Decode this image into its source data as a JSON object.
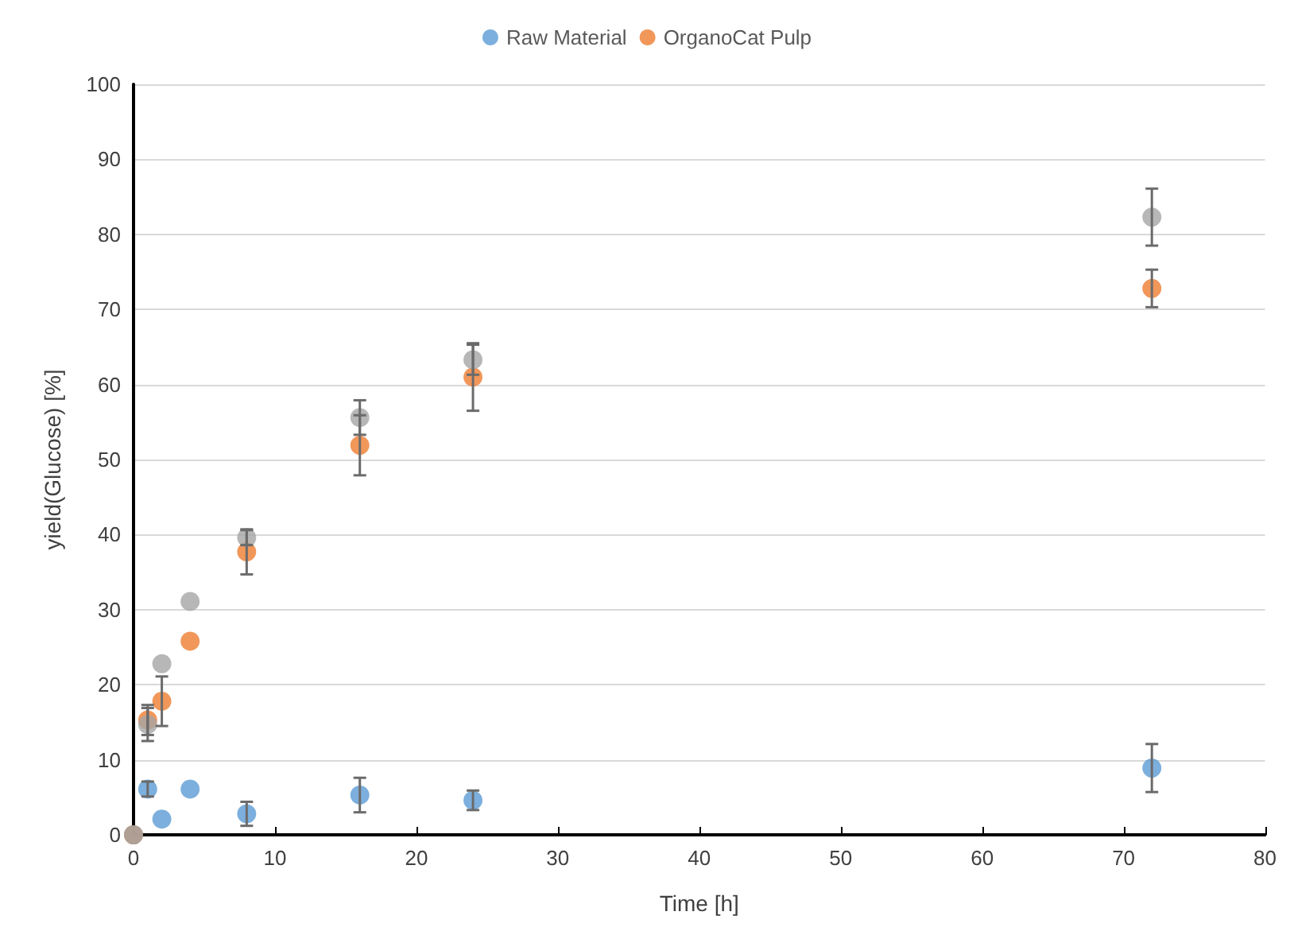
{
  "chart_data": {
    "type": "scatter",
    "xlabel": "Time [h]",
    "ylabel": "yield(Glucose) [%]",
    "x": [
      0,
      1,
      2,
      4,
      8,
      16,
      24,
      72
    ],
    "series": [
      {
        "name": "Raw Material",
        "color": "#5b9bd5",
        "values": [
          0,
          6.1,
          2.1,
          6.1,
          2.8,
          5.3,
          4.6,
          8.9
        ],
        "errors": [
          null,
          1.0,
          null,
          null,
          1.6,
          2.3,
          1.3,
          3.2
        ]
      },
      {
        "name": "OrganoCat Pulp",
        "color": "#ed7d31",
        "values": [
          0,
          15.3,
          17.8,
          25.8,
          37.7,
          51.9,
          61.0,
          72.8
        ],
        "errors": [
          null,
          2.0,
          3.3,
          null,
          3.0,
          4.0,
          4.5,
          2.5
        ]
      },
      {
        "color": "#a5a5a5",
        "values": [
          0,
          14.7,
          22.8,
          31.1,
          39.6,
          55.6,
          63.3,
          82.3
        ],
        "errors": [
          null,
          2.2,
          null,
          null,
          1.0,
          2.3,
          2.0,
          3.8
        ]
      }
    ],
    "xlim": [
      0,
      80
    ],
    "xticks": [
      0,
      10,
      20,
      30,
      40,
      50,
      60,
      70,
      80
    ],
    "ylim": [
      0,
      100
    ],
    "yticks": [
      0,
      10,
      20,
      30,
      40,
      50,
      60,
      70,
      80,
      90,
      100
    ],
    "grid": "y",
    "legend": "top",
    "marker": "circle"
  }
}
